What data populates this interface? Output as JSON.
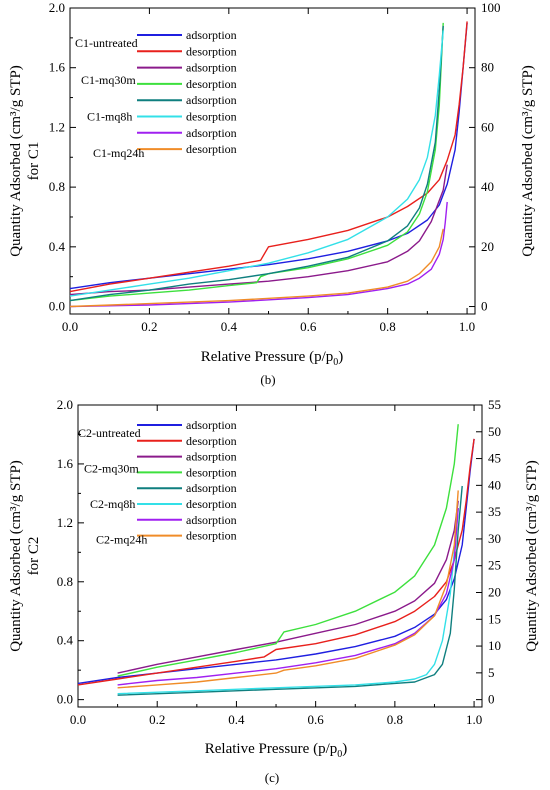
{
  "chart_data": [
    {
      "type": "line",
      "panel_label": "(b)",
      "xlabel": "Relative Pressure (p/p",
      "xlabel_sub": "0",
      "xlabel_tail": ")",
      "ylabel_left_line1": "Quantity Adsorbed (cm³/g STP)",
      "ylabel_left_line2": "for C1",
      "ylabel_right": "Quantity Adsorbed (cm³/g STP)",
      "xlim": [
        0,
        1.02
      ],
      "ylim_left": [
        -0.05,
        2.0
      ],
      "ylim_right": [
        -2.5,
        100
      ],
      "xticks": [
        0.0,
        0.2,
        0.4,
        0.6,
        0.8,
        1.0
      ],
      "xtick_labels": [
        "0.0",
        "0.2",
        "0.4",
        "0.6",
        "0.8",
        "1.0"
      ],
      "yticks_left": [
        0.0,
        0.4,
        0.8,
        1.2,
        1.6,
        2.0
      ],
      "ytick_left_labels": [
        "0.0",
        "0.4",
        "0.8",
        "1.2",
        "1.6",
        "2.0"
      ],
      "yticks_right": [
        0,
        20,
        40,
        60,
        80,
        100
      ],
      "ytick_right_labels": [
        "0",
        "20",
        "40",
        "60",
        "80",
        "100"
      ],
      "legend_groups": [
        "C1-untreated",
        "C1-mq30m",
        "C1-mq8h",
        "C1-mq24h"
      ],
      "legend_entries": [
        {
          "label": "adsorption",
          "color": "#1f1fe0"
        },
        {
          "label": "desorption",
          "color": "#e8201c"
        },
        {
          "label": "adsorption",
          "color": "#8b1a8b"
        },
        {
          "label": "desorption",
          "color": "#3de03d"
        },
        {
          "label": "adsorption",
          "color": "#0f7f7f"
        },
        {
          "label": "desorption",
          "color": "#33e0e8"
        },
        {
          "label": "adsorption",
          "color": "#a020f0"
        },
        {
          "label": "desorption",
          "color": "#f08c28"
        }
      ],
      "series": [
        {
          "color": "#1f1fe0",
          "axis": "left",
          "x": [
            0.0,
            0.1,
            0.2,
            0.3,
            0.4,
            0.5,
            0.6,
            0.7,
            0.8,
            0.85,
            0.9,
            0.93,
            0.95,
            0.97,
            0.98,
            0.99,
            1.0
          ],
          "y": [
            0.12,
            0.16,
            0.19,
            0.22,
            0.25,
            0.28,
            0.32,
            0.37,
            0.44,
            0.49,
            0.58,
            0.68,
            0.82,
            1.05,
            1.3,
            1.6,
            1.9
          ]
        },
        {
          "color": "#e8201c",
          "axis": "left",
          "x": [
            0.0,
            0.1,
            0.2,
            0.3,
            0.4,
            0.48,
            0.5,
            0.6,
            0.7,
            0.8,
            0.85,
            0.9,
            0.93,
            0.95,
            0.97,
            0.98,
            0.99,
            1.0
          ],
          "y": [
            0.1,
            0.15,
            0.19,
            0.23,
            0.27,
            0.31,
            0.4,
            0.45,
            0.51,
            0.6,
            0.67,
            0.76,
            0.85,
            0.98,
            1.15,
            1.35,
            1.6,
            1.91
          ]
        },
        {
          "color": "#8b1a8b",
          "axis": "left",
          "x": [
            0.0,
            0.1,
            0.2,
            0.3,
            0.4,
            0.5,
            0.6,
            0.7,
            0.8,
            0.85,
            0.88,
            0.91,
            0.94,
            0.95
          ],
          "y": [
            0.08,
            0.1,
            0.11,
            0.13,
            0.15,
            0.17,
            0.2,
            0.24,
            0.3,
            0.37,
            0.44,
            0.57,
            0.78,
            0.95
          ]
        },
        {
          "color": "#3de03d",
          "axis": "left",
          "x": [
            0.0,
            0.1,
            0.2,
            0.3,
            0.4,
            0.47,
            0.48,
            0.5,
            0.6,
            0.7,
            0.8,
            0.85,
            0.88,
            0.9,
            0.92,
            0.93,
            0.94
          ],
          "y": [
            0.04,
            0.07,
            0.09,
            0.11,
            0.14,
            0.16,
            0.2,
            0.22,
            0.26,
            0.32,
            0.41,
            0.5,
            0.62,
            0.77,
            1.05,
            1.35,
            1.9
          ]
        },
        {
          "color": "#0f7f7f",
          "axis": "left",
          "x": [
            0.0,
            0.1,
            0.2,
            0.3,
            0.4,
            0.5,
            0.6,
            0.7,
            0.8,
            0.85,
            0.88,
            0.9,
            0.92,
            0.93,
            0.94
          ],
          "y": [
            0.04,
            0.08,
            0.11,
            0.15,
            0.18,
            0.22,
            0.27,
            0.33,
            0.44,
            0.54,
            0.66,
            0.82,
            1.1,
            1.45,
            1.88
          ]
        },
        {
          "color": "#33e0e8",
          "axis": "left",
          "x": [
            0.0,
            0.1,
            0.2,
            0.3,
            0.4,
            0.5,
            0.6,
            0.7,
            0.8,
            0.85,
            0.88,
            0.9,
            0.92,
            0.93,
            0.94
          ],
          "y": [
            0.07,
            0.11,
            0.15,
            0.19,
            0.24,
            0.29,
            0.36,
            0.45,
            0.6,
            0.72,
            0.85,
            1.0,
            1.28,
            1.55,
            1.85
          ]
        },
        {
          "color": "#a020f0",
          "axis": "left",
          "x": [
            0.0,
            0.2,
            0.4,
            0.6,
            0.7,
            0.8,
            0.85,
            0.88,
            0.91,
            0.93,
            0.94,
            0.945,
            0.95
          ],
          "y": [
            0.0,
            0.01,
            0.03,
            0.06,
            0.08,
            0.12,
            0.15,
            0.19,
            0.25,
            0.35,
            0.45,
            0.56,
            0.7
          ]
        },
        {
          "color": "#f08c28",
          "axis": "left",
          "x": [
            0.0,
            0.2,
            0.4,
            0.6,
            0.7,
            0.8,
            0.85,
            0.88,
            0.91,
            0.93,
            0.94
          ],
          "y": [
            0.0,
            0.02,
            0.04,
            0.07,
            0.09,
            0.13,
            0.17,
            0.22,
            0.3,
            0.4,
            0.52
          ]
        }
      ]
    },
    {
      "type": "line",
      "panel_label": "(c)",
      "xlabel": "Relative Pressure (p/p",
      "xlabel_sub": "0",
      "xlabel_tail": ")",
      "ylabel_left_line1": "Quantity Adsorbed (cm³/g STP)",
      "ylabel_left_line2": "for C2",
      "ylabel_right": "Quantity Adsorbed (cm³/g STP)",
      "xlim": [
        0,
        1.02
      ],
      "ylim_left": [
        -0.05,
        2.0
      ],
      "ylim_right": [
        -1.375,
        55
      ],
      "xticks": [
        0.0,
        0.2,
        0.4,
        0.6,
        0.8,
        1.0
      ],
      "xtick_labels": [
        "0.0",
        "0.2",
        "0.4",
        "0.6",
        "0.8",
        "1.0"
      ],
      "yticks_left": [
        0.0,
        0.4,
        0.8,
        1.2,
        1.6,
        2.0
      ],
      "ytick_left_labels": [
        "0.0",
        "0.4",
        "0.8",
        "1.2",
        "1.6",
        "2.0"
      ],
      "yticks_right": [
        0,
        5,
        10,
        15,
        20,
        25,
        30,
        35,
        40,
        45,
        50,
        55
      ],
      "ytick_right_labels": [
        "0",
        "5",
        "10",
        "15",
        "20",
        "25",
        "30",
        "35",
        "40",
        "45",
        "50",
        "55"
      ],
      "legend_groups": [
        "C2-untreated",
        "C2-mq30m",
        "C2-mq8h",
        "C2-mq24h"
      ],
      "legend_entries": [
        {
          "label": "adsorption",
          "color": "#1f1fe0"
        },
        {
          "label": "desorption",
          "color": "#e8201c"
        },
        {
          "label": "adsorption",
          "color": "#8b1a8b"
        },
        {
          "label": "desorption",
          "color": "#3de03d"
        },
        {
          "label": "adsorption",
          "color": "#0f7f7f"
        },
        {
          "label": "desorption",
          "color": "#33e0e8"
        },
        {
          "label": "adsorption",
          "color": "#a020f0"
        },
        {
          "label": "desorption",
          "color": "#f08c28"
        }
      ],
      "series": [
        {
          "color": "#1f1fe0",
          "axis": "left",
          "x": [
            0.0,
            0.1,
            0.2,
            0.3,
            0.4,
            0.5,
            0.6,
            0.7,
            0.8,
            0.85,
            0.9,
            0.93,
            0.95,
            0.97,
            0.98,
            0.99,
            1.0
          ],
          "y": [
            0.11,
            0.15,
            0.18,
            0.21,
            0.24,
            0.27,
            0.31,
            0.36,
            0.43,
            0.49,
            0.58,
            0.68,
            0.82,
            1.05,
            1.3,
            1.55,
            1.77
          ]
        },
        {
          "color": "#e8201c",
          "axis": "left",
          "x": [
            0.0,
            0.1,
            0.2,
            0.3,
            0.4,
            0.47,
            0.5,
            0.6,
            0.7,
            0.8,
            0.85,
            0.9,
            0.93,
            0.95,
            0.97,
            0.98,
            0.99,
            1.0
          ],
          "y": [
            0.1,
            0.14,
            0.18,
            0.22,
            0.26,
            0.29,
            0.34,
            0.38,
            0.44,
            0.53,
            0.6,
            0.7,
            0.8,
            0.95,
            1.15,
            1.35,
            1.58,
            1.77
          ]
        },
        {
          "color": "#8b1a8b",
          "axis": "left",
          "x": [
            0.1,
            0.2,
            0.3,
            0.4,
            0.5,
            0.6,
            0.7,
            0.8,
            0.85,
            0.9,
            0.93,
            0.95,
            0.96
          ],
          "y": [
            0.18,
            0.24,
            0.29,
            0.34,
            0.39,
            0.45,
            0.51,
            0.6,
            0.67,
            0.79,
            0.95,
            1.15,
            1.35
          ]
        },
        {
          "color": "#3de03d",
          "axis": "left",
          "x": [
            0.1,
            0.2,
            0.3,
            0.4,
            0.5,
            0.52,
            0.6,
            0.7,
            0.8,
            0.85,
            0.9,
            0.93,
            0.95,
            0.96
          ],
          "y": [
            0.16,
            0.22,
            0.27,
            0.32,
            0.38,
            0.46,
            0.51,
            0.6,
            0.73,
            0.84,
            1.05,
            1.3,
            1.6,
            1.87
          ]
        },
        {
          "color": "#0f7f7f",
          "axis": "left",
          "x": [
            0.1,
            0.3,
            0.5,
            0.7,
            0.8,
            0.85,
            0.9,
            0.92,
            0.94,
            0.95,
            0.96,
            0.97
          ],
          "y": [
            0.03,
            0.05,
            0.07,
            0.09,
            0.11,
            0.12,
            0.17,
            0.24,
            0.45,
            0.75,
            1.15,
            1.45
          ]
        },
        {
          "color": "#33e0e8",
          "axis": "left",
          "x": [
            0.1,
            0.3,
            0.5,
            0.7,
            0.8,
            0.85,
            0.88,
            0.9,
            0.92,
            0.94,
            0.95,
            0.96
          ],
          "y": [
            0.04,
            0.06,
            0.08,
            0.1,
            0.12,
            0.14,
            0.17,
            0.24,
            0.4,
            0.72,
            1.0,
            1.3
          ]
        },
        {
          "color": "#a020f0",
          "axis": "left",
          "x": [
            0.1,
            0.2,
            0.3,
            0.4,
            0.5,
            0.6,
            0.7,
            0.8,
            0.85,
            0.9,
            0.93,
            0.95,
            0.96
          ],
          "y": [
            0.1,
            0.13,
            0.15,
            0.18,
            0.21,
            0.25,
            0.3,
            0.38,
            0.45,
            0.57,
            0.72,
            0.95,
            1.3
          ]
        },
        {
          "color": "#f08c28",
          "axis": "left",
          "x": [
            0.1,
            0.2,
            0.3,
            0.4,
            0.5,
            0.52,
            0.6,
            0.7,
            0.8,
            0.85,
            0.9,
            0.93,
            0.95,
            0.96
          ],
          "y": [
            0.08,
            0.1,
            0.12,
            0.15,
            0.18,
            0.2,
            0.23,
            0.28,
            0.37,
            0.44,
            0.57,
            0.78,
            1.05,
            1.42
          ]
        }
      ]
    }
  ]
}
